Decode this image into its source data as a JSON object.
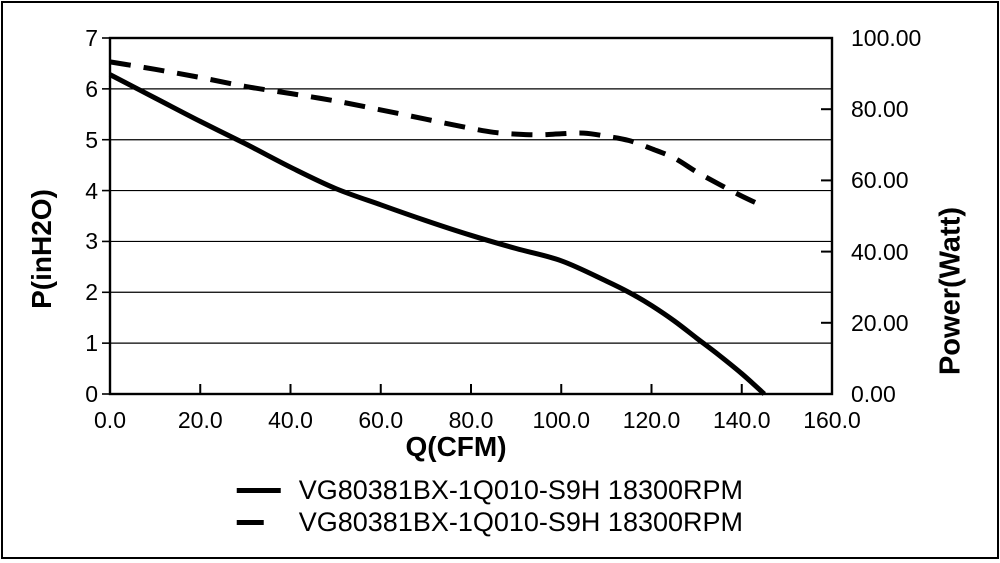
{
  "chart_data": {
    "type": "line",
    "title": "",
    "xlabel": "Q(CFM)",
    "ylabel_left": "P(inH2O)",
    "ylabel_right": "Power(Watt)",
    "x_range": [
      0,
      160
    ],
    "x_ticks": [
      "0.0",
      "20.0",
      "40.0",
      "60.0",
      "80.0",
      "100.0",
      "120.0",
      "140.0",
      "160.0"
    ],
    "y_left_range": [
      0,
      7
    ],
    "y_left_ticks": [
      "0",
      "1",
      "2",
      "3",
      "4",
      "5",
      "6",
      "7"
    ],
    "y_right_range": [
      0,
      100
    ],
    "y_right_ticks": [
      "0.00",
      "20.00",
      "40.00",
      "60.00",
      "80.00",
      "100.00"
    ],
    "grid": "horizontal-only",
    "legend_position": "bottom",
    "series": [
      {
        "name": "VG80381BX-1Q010-S9H 18300RPM",
        "axis": "left",
        "style": "solid",
        "color": "#000000",
        "points": [
          [
            0,
            6.28
          ],
          [
            10,
            5.82
          ],
          [
            20,
            5.36
          ],
          [
            30,
            4.92
          ],
          [
            40,
            4.46
          ],
          [
            50,
            4.04
          ],
          [
            60,
            3.72
          ],
          [
            70,
            3.41
          ],
          [
            80,
            3.12
          ],
          [
            90,
            2.86
          ],
          [
            100,
            2.62
          ],
          [
            110,
            2.22
          ],
          [
            115,
            2.0
          ],
          [
            120,
            1.74
          ],
          [
            125,
            1.44
          ],
          [
            130,
            1.1
          ],
          [
            135,
            0.76
          ],
          [
            140,
            0.4
          ],
          [
            145,
            0.0
          ]
        ]
      },
      {
        "name": "VG80381BX-1Q010-S9H 18300RPM",
        "axis": "right",
        "style": "dashed",
        "color": "#000000",
        "points": [
          [
            0,
            93.3
          ],
          [
            10,
            91.2
          ],
          [
            20,
            88.9
          ],
          [
            30,
            86.4
          ],
          [
            40,
            84.4
          ],
          [
            50,
            82.3
          ],
          [
            60,
            79.8
          ],
          [
            70,
            77.2
          ],
          [
            80,
            74.6
          ],
          [
            85,
            73.5
          ],
          [
            90,
            73.0
          ],
          [
            95,
            72.8
          ],
          [
            100,
            73.1
          ],
          [
            105,
            73.3
          ],
          [
            110,
            72.4
          ],
          [
            115,
            71.2
          ],
          [
            120,
            68.9
          ],
          [
            125,
            66.3
          ],
          [
            130,
            62.4
          ],
          [
            135,
            58.9
          ],
          [
            140,
            55.6
          ],
          [
            145,
            52.6
          ]
        ]
      }
    ]
  },
  "legend": {
    "items": [
      {
        "label": "VG80381BX-1Q010-S9H 18300RPM",
        "style": "solid"
      },
      {
        "label": "VG80381BX-1Q010-S9H 18300RPM",
        "style": "dashed"
      }
    ]
  },
  "colors": {
    "curve": "#000000",
    "grid": "#000000",
    "frame": "#000000",
    "background": "#ffffff",
    "text": "#000000"
  }
}
